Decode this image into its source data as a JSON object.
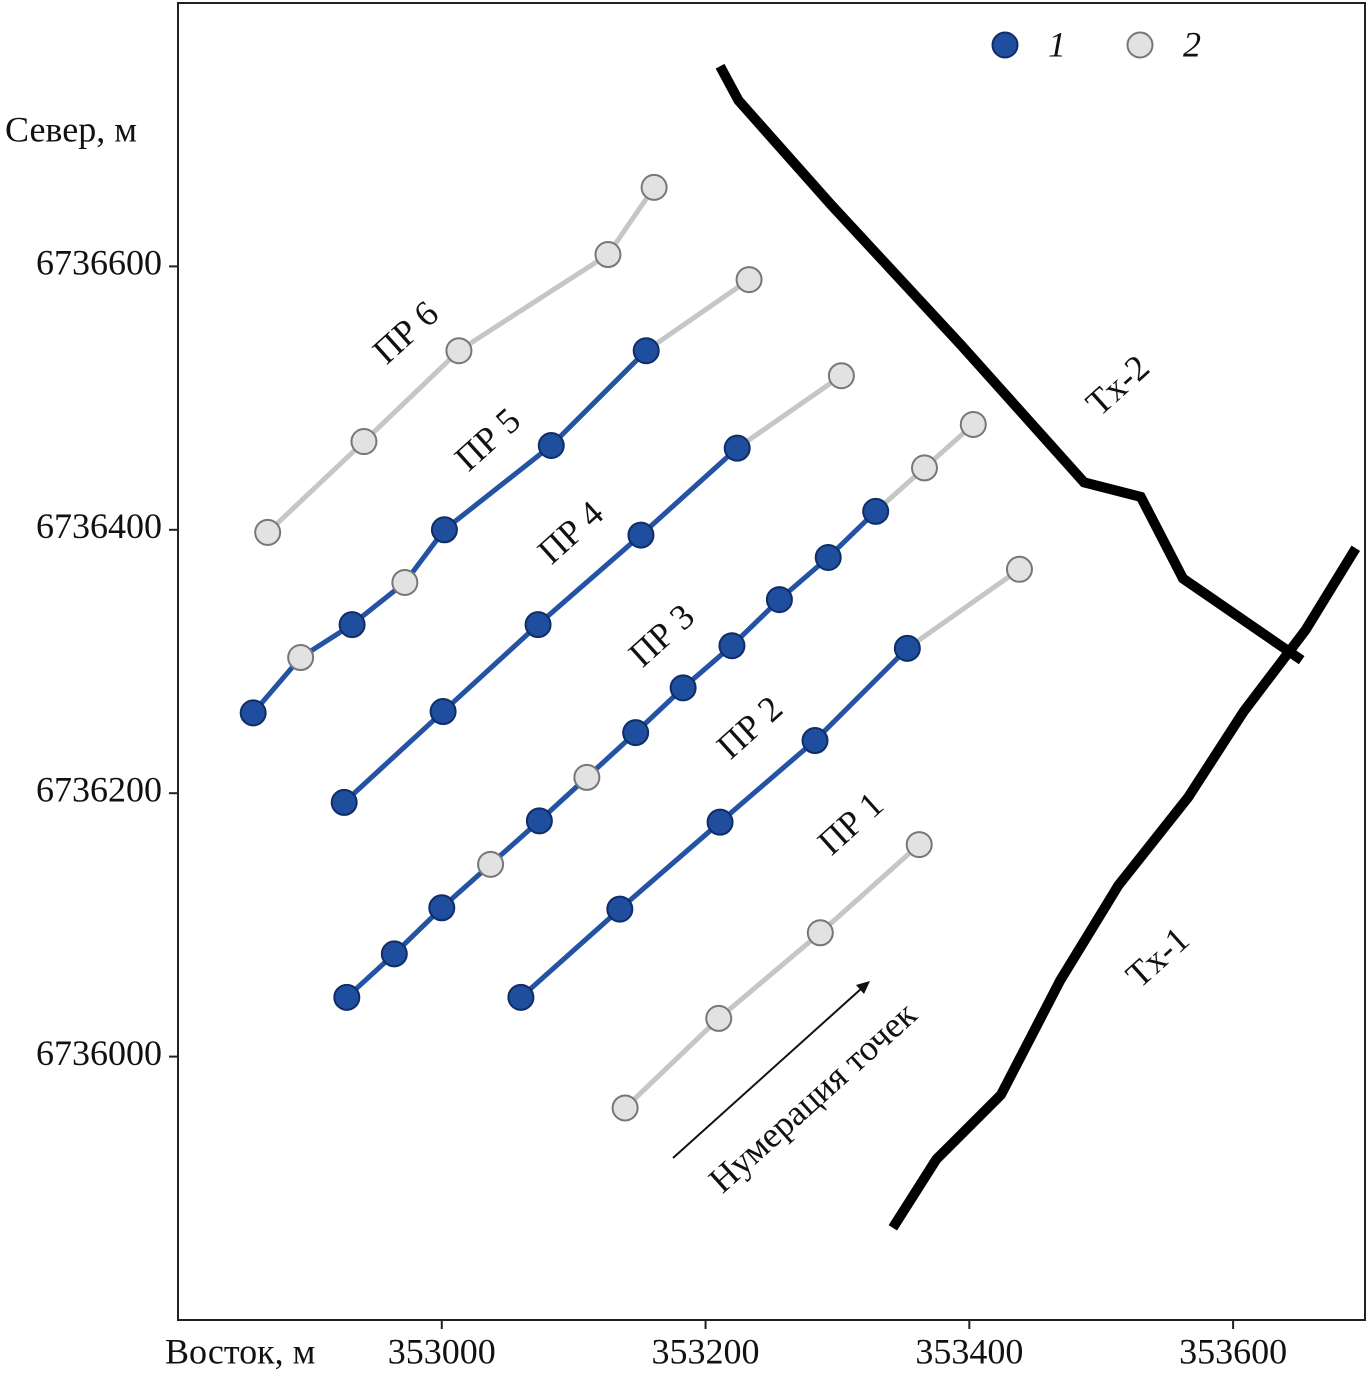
{
  "chart_data": {
    "type": "scatter",
    "x_label": "Восток, м",
    "y_label": "Север, м",
    "xlim": [
      352800,
      353700
    ],
    "ylim": [
      6735800,
      6736800
    ],
    "xticks": [
      353000,
      353200,
      353400,
      353600
    ],
    "yticks": [
      6736000,
      6736200,
      6736400,
      6736600
    ],
    "series": [
      {
        "name": "1",
        "color": "#1f4e9e",
        "line_color": "#2452a4"
      },
      {
        "name": "2",
        "color": "#e2e2e2",
        "line_color": "#c6c6c6"
      }
    ],
    "profiles": [
      {
        "name": "ПР 1",
        "x": [
          353139,
          353210,
          353287,
          353362
        ],
        "y": [
          6735961,
          6736029,
          6736094,
          6736161
        ],
        "series_index": [
          1,
          1,
          1,
          1
        ]
      },
      {
        "name": "ПР 2",
        "x": [
          353060,
          353135,
          353211,
          353283,
          353353,
          353438
        ],
        "y": [
          6736045,
          6736112,
          6736178,
          6736240,
          6736310,
          6736370
        ],
        "series_index": [
          0,
          0,
          0,
          0,
          0,
          1
        ]
      },
      {
        "name": "ПР 3",
        "x": [
          352928,
          352964,
          353000,
          353037,
          353074,
          353110,
          353147,
          353183,
          353220,
          353256,
          353293,
          353329,
          353366,
          353403
        ],
        "y": [
          6736045,
          6736078,
          6736113,
          6736146,
          6736179,
          6736212,
          6736246,
          6736280,
          6736312,
          6736347,
          6736379,
          6736414,
          6736447,
          6736480
        ],
        "series_index": [
          0,
          0,
          0,
          1,
          0,
          1,
          0,
          0,
          0,
          0,
          0,
          0,
          1,
          1
        ]
      },
      {
        "name": "ПР 4",
        "x": [
          352926,
          353001,
          353073,
          353151,
          353224,
          353303
        ],
        "y": [
          6736193,
          6736262,
          6736328,
          6736396,
          6736462,
          6736517
        ],
        "series_index": [
          0,
          0,
          0,
          0,
          0,
          1
        ]
      },
      {
        "name": "ПР 5",
        "x": [
          352857,
          352893,
          352932,
          352972,
          353002,
          353083,
          353155,
          353233
        ],
        "y": [
          6736261,
          6736303,
          6736328,
          6736360,
          6736400,
          6736464,
          6736536,
          6736590
        ],
        "series_index": [
          0,
          1,
          0,
          1,
          0,
          0,
          0,
          1
        ]
      },
      {
        "name": "ПР 6",
        "x": [
          352868,
          352941,
          353013,
          353126,
          353161
        ],
        "y": [
          6736398,
          6736467,
          6736536,
          6736609,
          6736660
        ],
        "series_index": [
          1,
          1,
          1,
          1,
          1
        ]
      }
    ],
    "faults": [
      {
        "name": "Tx-1",
        "x": [
          353342,
          353375,
          353424,
          353469,
          353513,
          353566,
          353608,
          353655,
          353693
        ],
        "y": [
          6735870,
          6735922,
          6735971,
          6736058,
          6736130,
          6736197,
          6736262,
          6736324,
          6736386
        ]
      },
      {
        "name": "Tx-2",
        "x": [
          353211,
          353225,
          353295,
          353394,
          353487,
          353530,
          353562,
          353652
        ],
        "y": [
          6736752,
          6736726,
          6736647,
          6736540,
          6736436,
          6736425,
          6736363,
          6736301
        ]
      }
    ],
    "annotation": "Нумерация точек"
  }
}
